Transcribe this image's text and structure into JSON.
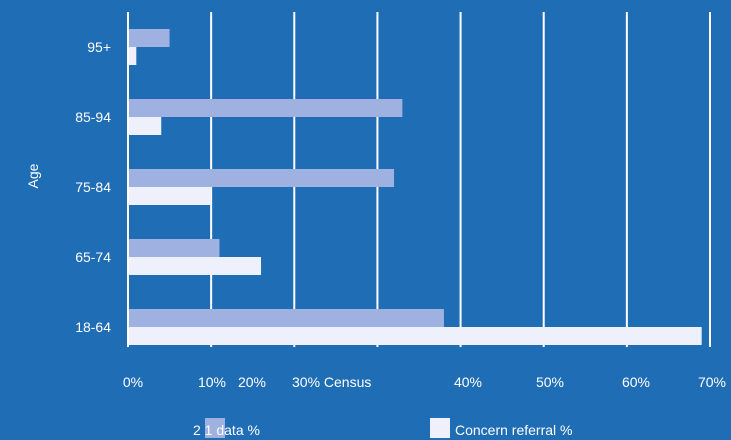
{
  "colors": {
    "background": "#1f6db5",
    "gridline": "#ffffff",
    "series_2011": "#9eb1e0",
    "series_concern": "#eef0fb"
  },
  "chart_data": {
    "type": "bar",
    "orientation": "horizontal",
    "categories": [
      "95+",
      "85-94",
      "75-84",
      "65-74",
      "18-64"
    ],
    "series": [
      {
        "name": "2011 Census data %",
        "values": [
          5,
          33,
          32,
          11,
          38
        ]
      },
      {
        "name": "Concern referral %",
        "values": [
          1,
          4,
          10,
          16,
          69
        ]
      }
    ],
    "x_ticks": [
      "0%",
      "10%",
      "20%",
      "30% Census",
      "40%",
      "50%",
      "60%",
      "70%"
    ],
    "ylabel": "Age",
    "xlim": [
      0,
      70
    ],
    "legend": {
      "items": [
        "2 1 data %",
        "Concern referral %"
      ],
      "placement": "bottom"
    },
    "grid": true
  }
}
